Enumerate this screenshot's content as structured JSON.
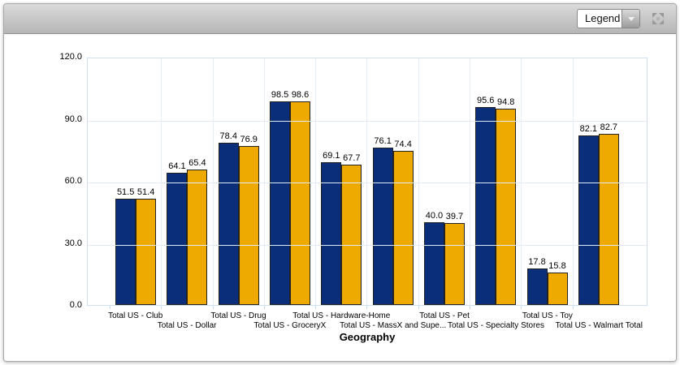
{
  "toolbar": {
    "legend_dropdown": {
      "value": "Legend"
    },
    "expand_icon": "expand-arrows-icon"
  },
  "chart_data": {
    "type": "bar",
    "title": "",
    "xlabel": "Geography",
    "ylabel": "",
    "ylim": [
      0,
      120
    ],
    "ytick_labels": [
      "120.0",
      "90.0",
      "60.0",
      "30.0",
      "0.0"
    ],
    "grid": true,
    "legend_position": "collapsed-dropdown",
    "categories": [
      "Total US - Club",
      "Total US - Dollar",
      "Total US - Drug",
      "Total US - GroceryX",
      "Total US - Hardware-Home",
      "Total US - MassX and Supe...",
      "Total US - Pet",
      "Total US - Specialty Stores",
      "Total US - Toy",
      "Total US - Walmart Total"
    ],
    "series": [
      {
        "name": "navy-series",
        "color": "#0b2e7b",
        "values": [
          51.5,
          64.1,
          78.4,
          98.5,
          69.1,
          76.1,
          40.0,
          95.6,
          17.8,
          82.1
        ]
      },
      {
        "name": "gold-series",
        "color": "#eeaa00",
        "values": [
          51.4,
          65.4,
          76.9,
          98.6,
          67.7,
          74.4,
          39.7,
          94.8,
          15.8,
          82.7
        ]
      }
    ],
    "value_label_decimals": 1,
    "grid_color": "#e0eaf4"
  }
}
